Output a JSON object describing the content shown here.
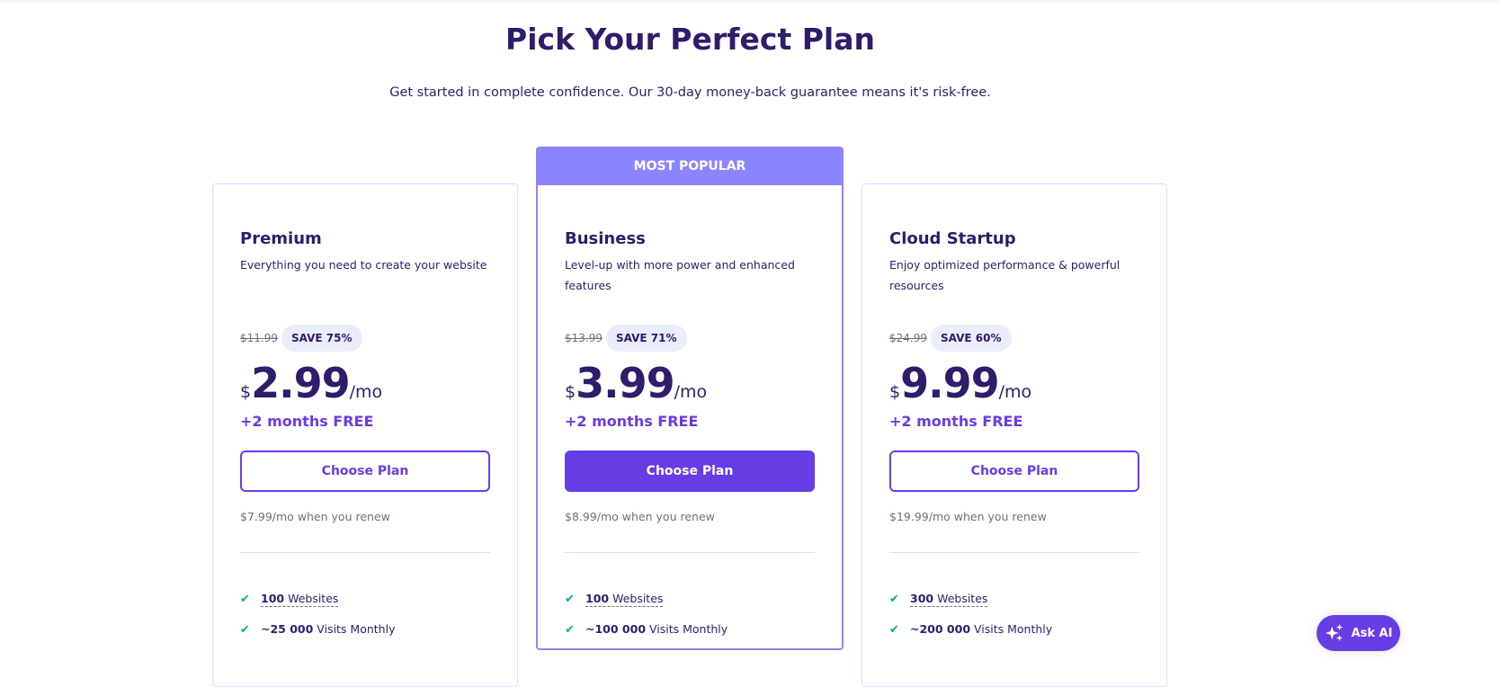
{
  "header": {
    "title": "Pick Your Perfect Plan",
    "subtitle": "Get started in complete confidence. Our 30-day money-back guarantee means it's risk-free."
  },
  "plans": [
    {
      "name": "Premium",
      "description": "Everything you need to create your website",
      "old_price": "$11.99",
      "save": "SAVE 75%",
      "currency": "$",
      "price": "2.99",
      "period": "/mo",
      "bonus": "+2 months FREE",
      "cta": "Choose Plan",
      "renew": "$7.99/mo when you renew",
      "features": [
        {
          "bold": "100",
          "text": " Websites"
        },
        {
          "bold": "~25 000",
          "text": " Visits Monthly"
        }
      ]
    },
    {
      "badge": "MOST POPULAR",
      "name": "Business",
      "description": "Level-up with more power and enhanced features",
      "old_price": "$13.99",
      "save": "SAVE 71%",
      "currency": "$",
      "price": "3.99",
      "period": "/mo",
      "bonus": "+2 months FREE",
      "cta": "Choose Plan",
      "renew": "$8.99/mo when you renew",
      "features": [
        {
          "bold": "100",
          "text": " Websites"
        },
        {
          "bold": "~100 000",
          "text": " Visits Monthly"
        }
      ]
    },
    {
      "name": "Cloud Startup",
      "description": "Enjoy optimized performance & powerful resources",
      "old_price": "$24.99",
      "save": "SAVE 60%",
      "currency": "$",
      "price": "9.99",
      "period": "/mo",
      "bonus": "+2 months FREE",
      "cta": "Choose Plan",
      "renew": "$19.99/mo when you renew",
      "features": [
        {
          "bold": "300",
          "text": " Websites"
        },
        {
          "bold": "~200 000",
          "text": " Visits Monthly"
        }
      ]
    }
  ],
  "ask_ai": {
    "label": "Ask AI",
    "icon": "sparkles-icon"
  },
  "colors": {
    "primary": "#673de6",
    "dark": "#2f1c6a",
    "popular": "#8c85ff",
    "check": "#00b090"
  }
}
